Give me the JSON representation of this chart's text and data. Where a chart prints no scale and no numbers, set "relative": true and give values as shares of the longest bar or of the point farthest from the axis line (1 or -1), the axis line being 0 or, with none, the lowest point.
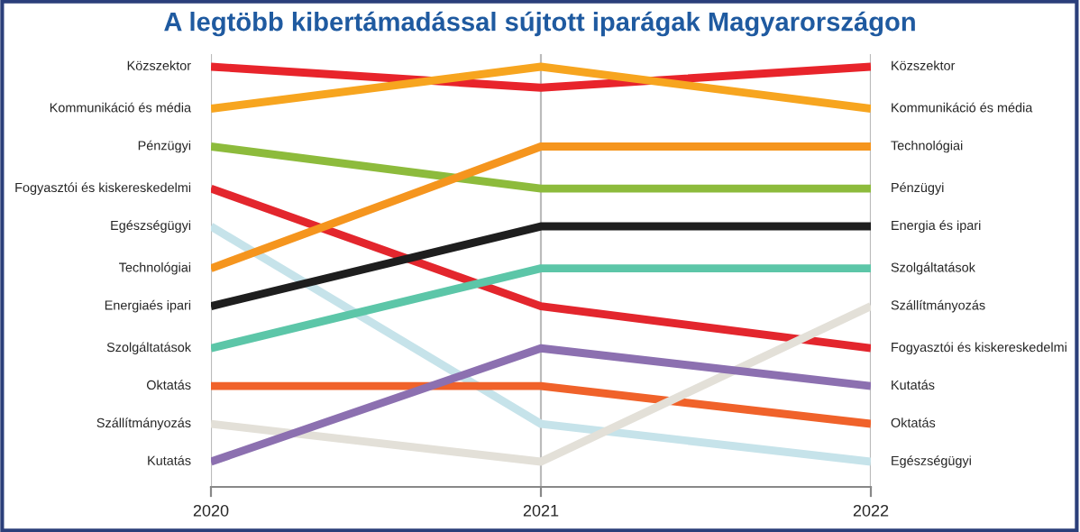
{
  "chart_data": {
    "type": "line",
    "title": "A legtöbb kibertámadással sújtott iparágak Magyarországon",
    "categories": [
      "2020",
      "2021",
      "2022"
    ],
    "relative": true,
    "grid": "x",
    "legend": false,
    "tick_labels": "x",
    "marker": "none",
    "line_style": "solid",
    "series": [
      {
        "name": "Közszektor",
        "color": "#e8242b",
        "values": [
          1.0,
          0.95,
          1.0
        ]
      },
      {
        "name": "Kommunikáció és média",
        "color": "#f7a51f",
        "values": [
          0.9,
          1.0,
          0.9
        ]
      },
      {
        "name": "Pénzügyi",
        "color": "#8dbb3c",
        "values": [
          0.81,
          0.71,
          0.71
        ]
      },
      {
        "name": "Fogyasztói és kiskereskedelmi",
        "color": "#e3262d",
        "values": [
          0.71,
          0.43,
          0.33
        ]
      },
      {
        "name": "Egészségügyi",
        "color": "#c6e3ea",
        "values": [
          0.62,
          0.15,
          0.06
        ]
      },
      {
        "name": "Technológiai",
        "color": "#f5951e",
        "values": [
          0.52,
          0.81,
          0.81
        ]
      },
      {
        "name": "Energia és ipari",
        "color": "#1e1e1e",
        "values": [
          0.43,
          0.62,
          0.62
        ]
      },
      {
        "name": "Szolgáltatások",
        "color": "#5cc6a8",
        "values": [
          0.33,
          0.52,
          0.52
        ]
      },
      {
        "name": "Oktatás",
        "color": "#f0622a",
        "values": [
          0.24,
          0.24,
          0.15
        ]
      },
      {
        "name": "Szállítmányozás",
        "color": "#e3e0d8",
        "values": [
          0.15,
          0.06,
          0.43
        ]
      },
      {
        "name": "Kutatás",
        "color": "#8c70b0",
        "values": [
          0.06,
          0.33,
          0.24
        ]
      }
    ],
    "annotations": [
      {
        "text": "Közszektor",
        "x": "2020",
        "y": 1.0
      },
      {
        "text": "Kommunikáció és média",
        "x": "2020",
        "y": 0.9
      },
      {
        "text": "Pénzügyi",
        "x": "2020",
        "y": 0.81
      },
      {
        "text": "Fogyasztói és kiskereskedelmi",
        "x": "2020",
        "y": 0.71
      },
      {
        "text": "Egészségügyi",
        "x": "2020",
        "y": 0.62
      },
      {
        "text": "Technológiai",
        "x": "2020",
        "y": 0.52
      },
      {
        "text": "Energiaés ipari",
        "x": "2020",
        "y": 0.43
      },
      {
        "text": "Szolgáltatások",
        "x": "2020",
        "y": 0.33
      },
      {
        "text": "Oktatás",
        "x": "2020",
        "y": 0.24
      },
      {
        "text": "Szállítmányozás",
        "x": "2020",
        "y": 0.15
      },
      {
        "text": "Kutatás",
        "x": "2020",
        "y": 0.06
      }
    ]
  }
}
